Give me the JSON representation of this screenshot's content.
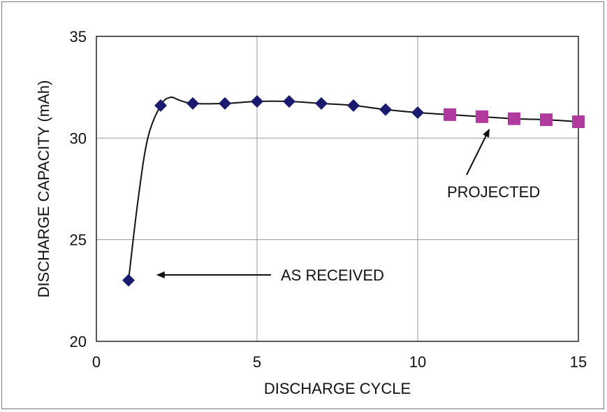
{
  "chart_data": {
    "type": "scatter",
    "title": "",
    "xlabel": "DISCHARGE CYCLE",
    "ylabel": "DISCHARGE CAPACITY (mAh)",
    "xlim": [
      0,
      15
    ],
    "ylim": [
      20,
      35
    ],
    "xticks": [
      0,
      5,
      10,
      15
    ],
    "yticks": [
      20,
      25,
      30,
      35
    ],
    "grid": true,
    "series": [
      {
        "name": "",
        "marker": "diamond",
        "color": "#1a1a6e",
        "x": [
          1,
          2,
          3,
          4,
          5,
          6,
          7,
          8,
          9,
          10
        ],
        "y": [
          23.0,
          31.6,
          31.7,
          31.7,
          31.8,
          31.8,
          31.7,
          31.6,
          31.4,
          31.25
        ]
      },
      {
        "name": "",
        "marker": "square",
        "color": "#b03a9e",
        "x": [
          11,
          12,
          13,
          14,
          15
        ],
        "y": [
          31.15,
          31.05,
          30.95,
          30.9,
          30.8
        ]
      }
    ],
    "trend_curve": {
      "color": "#111111",
      "x": [
        1,
        1.3,
        1.6,
        2,
        2.3,
        2.6,
        3,
        4,
        5,
        6,
        7,
        8,
        9,
        10,
        11,
        12,
        13,
        14,
        15
      ],
      "y": [
        23.0,
        27.0,
        30.0,
        31.6,
        32.0,
        31.85,
        31.7,
        31.7,
        31.8,
        31.8,
        31.7,
        31.6,
        31.4,
        31.25,
        31.15,
        31.05,
        30.95,
        30.9,
        30.8
      ]
    },
    "annotations": [
      {
        "text": "AS RECEIVED",
        "arrow_to": [
          1.8,
          23.2
        ]
      },
      {
        "text": "PROJECTED",
        "arrow_to": [
          12.3,
          30.85
        ]
      }
    ]
  }
}
